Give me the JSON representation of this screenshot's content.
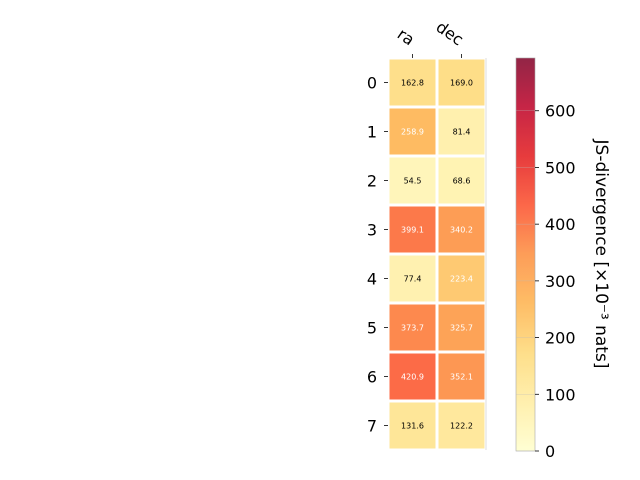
{
  "chart_data": {
    "type": "heatmap",
    "columns": [
      "ra",
      "dec"
    ],
    "rows": [
      "0",
      "1",
      "2",
      "3",
      "4",
      "5",
      "6",
      "7"
    ],
    "values": [
      [
        162.8,
        169.0
      ],
      [
        258.9,
        81.4
      ],
      [
        54.5,
        68.6
      ],
      [
        399.1,
        340.2
      ],
      [
        77.4,
        223.4
      ],
      [
        373.7,
        325.7
      ],
      [
        420.9,
        352.1
      ],
      [
        131.6,
        122.2
      ]
    ],
    "value_labels": [
      [
        "162.8",
        "169.0"
      ],
      [
        "258.9",
        "81.4"
      ],
      [
        "54.5",
        "68.6"
      ],
      [
        "399.1",
        "340.2"
      ],
      [
        "77.4",
        "223.4"
      ],
      [
        "373.7",
        "325.7"
      ],
      [
        "420.9",
        "352.1"
      ],
      [
        "131.6",
        "122.2"
      ]
    ],
    "colorbar": {
      "label": "JS-divergence [×10⁻³ nats]",
      "range": [
        0,
        693
      ],
      "ticks": [
        0,
        100,
        200,
        300,
        400,
        500,
        600
      ],
      "colormap": "YlOrRd"
    }
  }
}
